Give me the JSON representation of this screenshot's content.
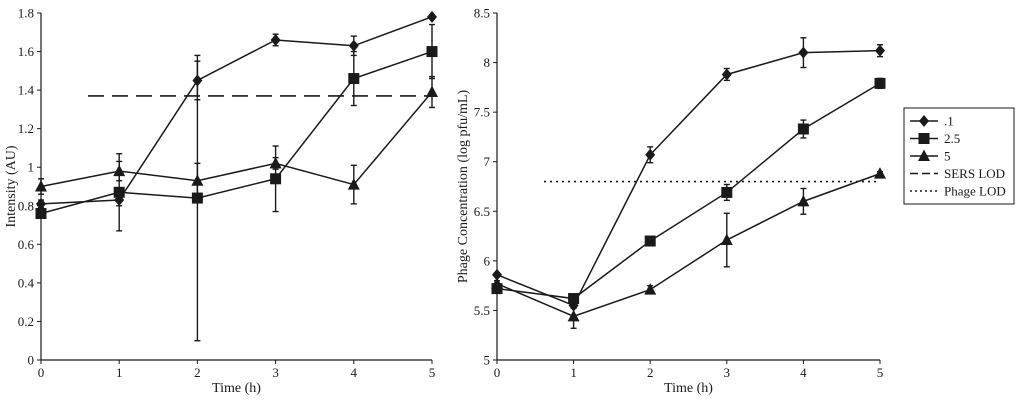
{
  "chart_data": [
    {
      "type": "line",
      "title": "",
      "xlabel": "Time (h)",
      "ylabel": "Intensity (AU)",
      "xlim": [
        0,
        5
      ],
      "ylim": [
        0,
        1.8
      ],
      "xticks": [
        "0",
        "1",
        "2",
        "3",
        "4",
        "5"
      ],
      "yticks": [
        "0",
        "0.2",
        "0.4",
        "0.6",
        "0.8",
        "1",
        "1.2",
        "1.4",
        "1.6",
        "1.8"
      ],
      "x": [
        0,
        1,
        2,
        3,
        4,
        5
      ],
      "series": [
        {
          "name": ".1",
          "marker": "diamond",
          "values": [
            0.81,
            0.83,
            1.45,
            1.66,
            1.63,
            1.78
          ],
          "errors": [
            0.02,
            0.03,
            0.1,
            0.03,
            0.05,
            0.01
          ]
        },
        {
          "name": "2.5",
          "marker": "square",
          "values": [
            0.76,
            0.87,
            0.84,
            0.94,
            1.46,
            1.6
          ],
          "errors": [
            0.02,
            0.2,
            0.74,
            0.17,
            0.14,
            0.14
          ]
        },
        {
          "name": "5",
          "marker": "triangle",
          "values": [
            0.9,
            0.98,
            0.93,
            1.02,
            0.91,
            1.39
          ],
          "errors": [
            0.04,
            0.05,
            0.09,
            0.03,
            0.1,
            0.08
          ]
        }
      ],
      "reference_lines": [
        {
          "name": "SERS LOD",
          "y": 1.37,
          "style": "dashed"
        }
      ],
      "grid": false
    },
    {
      "type": "line",
      "title": "",
      "xlabel": "Time (h)",
      "ylabel": "Phage Concentration (log pfu/mL)",
      "xlim": [
        0,
        5
      ],
      "ylim": [
        5,
        8.5
      ],
      "xticks": [
        "0",
        "1",
        "2",
        "3",
        "4",
        "5"
      ],
      "yticks": [
        "5",
        "5.5",
        "6",
        "6.5",
        "7",
        "7.5",
        "8",
        "8.5"
      ],
      "x": [
        0,
        1,
        2,
        3,
        4,
        5
      ],
      "series": [
        {
          "name": ".1",
          "marker": "diamond",
          "values": [
            5.86,
            5.55,
            7.07,
            7.88,
            8.1,
            8.12
          ],
          "errors": [
            0.02,
            0.03,
            0.08,
            0.06,
            0.15,
            0.06
          ]
        },
        {
          "name": "2.5",
          "marker": "square",
          "values": [
            5.72,
            5.62,
            6.2,
            6.69,
            7.33,
            7.79
          ],
          "errors": [
            0.02,
            0.03,
            0.03,
            0.08,
            0.09,
            0.05
          ]
        },
        {
          "name": "5",
          "marker": "triangle",
          "values": [
            5.77,
            5.44,
            5.71,
            6.21,
            6.6,
            6.88
          ],
          "errors": [
            0.03,
            0.12,
            0.04,
            0.27,
            0.13,
            0.02
          ]
        }
      ],
      "reference_lines": [
        {
          "name": "Phage LOD",
          "y": 6.8,
          "style": "dotted"
        }
      ],
      "grid": false
    }
  ],
  "legend": {
    "placement": "right",
    "entries": [
      {
        "label": ".1",
        "kind": "marker",
        "marker": "diamond"
      },
      {
        "label": "2.5",
        "kind": "marker",
        "marker": "square"
      },
      {
        "label": "5",
        "kind": "marker",
        "marker": "triangle"
      },
      {
        "label": "SERS LOD",
        "kind": "line",
        "style": "dashed"
      },
      {
        "label": "Phage LOD",
        "kind": "line",
        "style": "dotted"
      }
    ]
  }
}
